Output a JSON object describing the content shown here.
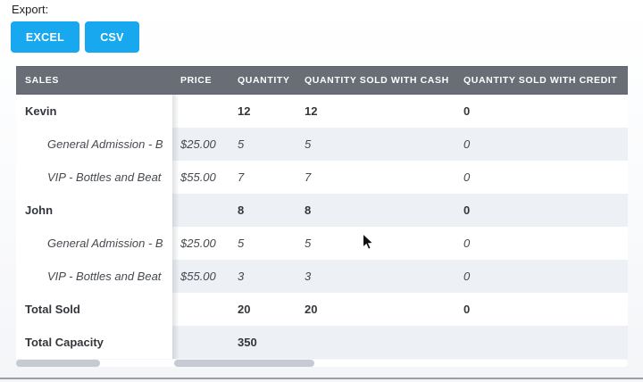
{
  "export": {
    "label": "Export:",
    "buttons": [
      {
        "label": "EXCEL"
      },
      {
        "label": "CSV"
      }
    ]
  },
  "table": {
    "columns": [
      "SALES",
      "PRICE",
      "QUANTITY",
      "QUANTITY SOLD WITH CASH",
      "QUANTITY SOLD WITH CREDIT"
    ],
    "rows": [
      {
        "type": "group",
        "name": "Kevin",
        "price": "",
        "qty": "12",
        "cash": "12",
        "credit": "0"
      },
      {
        "type": "item",
        "name": "General Admission - B",
        "price": "$25.00",
        "qty": "5",
        "cash": "5",
        "credit": "0"
      },
      {
        "type": "item",
        "name": "VIP - Bottles and Beat",
        "price": "$55.00",
        "qty": "7",
        "cash": "7",
        "credit": "0"
      },
      {
        "type": "group",
        "name": "John",
        "price": "",
        "qty": "8",
        "cash": "8",
        "credit": "0"
      },
      {
        "type": "item",
        "name": "General Admission - B",
        "price": "$25.00",
        "qty": "5",
        "cash": "5",
        "credit": "0"
      },
      {
        "type": "item",
        "name": "VIP - Bottles and Beat",
        "price": "$55.00",
        "qty": "3",
        "cash": "3",
        "credit": "0"
      },
      {
        "type": "total",
        "name": "Total Sold",
        "price": "",
        "qty": "20",
        "cash": "20",
        "credit": "0"
      },
      {
        "type": "total",
        "name": "Total Capacity",
        "price": "",
        "qty": "350",
        "cash": "",
        "credit": ""
      }
    ]
  },
  "colors": {
    "accent_blue": "#17a8f0",
    "header_bg": "#696d75",
    "row_stripe": "#edf1f5",
    "scroll_thumb": "#c6cad2",
    "text_dark": "#33373c"
  }
}
